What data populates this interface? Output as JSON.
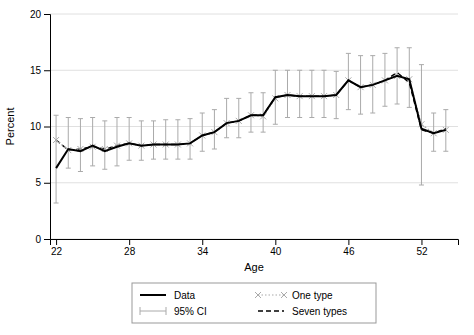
{
  "chart_data": {
    "type": "line",
    "xlabel": "Age",
    "ylabel": "Percent",
    "x": [
      22,
      23,
      24,
      25,
      26,
      27,
      28,
      29,
      30,
      31,
      32,
      33,
      34,
      35,
      36,
      37,
      38,
      39,
      40,
      41,
      42,
      43,
      44,
      45,
      46,
      47,
      48,
      49,
      50,
      51,
      52,
      53,
      54
    ],
    "xlim": [
      21.5,
      55
    ],
    "xticks": [
      22,
      28,
      34,
      40,
      46,
      52
    ],
    "ylim": [
      0,
      20
    ],
    "yticks": [
      0,
      5,
      10,
      15,
      20
    ],
    "grid": true,
    "legend": "bottom",
    "series": [
      {
        "name": "Data",
        "color": "#000000",
        "line_style": "solid",
        "values": [
          6.3,
          8.0,
          7.8,
          8.3,
          7.8,
          8.2,
          8.5,
          8.3,
          8.4,
          8.4,
          8.4,
          8.5,
          9.2,
          9.5,
          10.3,
          10.5,
          11.0,
          11.0,
          12.6,
          12.8,
          12.7,
          12.7,
          12.7,
          12.8,
          14.1,
          13.5,
          13.7,
          14.1,
          14.5,
          14.2,
          9.8,
          9.4,
          9.7
        ]
      },
      {
        "name": "95% CI",
        "type": "errorbar",
        "color": "#aaaaaa",
        "lower": [
          3.2,
          6.3,
          6.0,
          6.5,
          6.2,
          6.5,
          7.0,
          7.0,
          7.1,
          7.1,
          7.1,
          7.1,
          7.8,
          8.0,
          9.0,
          9.0,
          9.5,
          9.5,
          10.2,
          10.8,
          10.8,
          10.8,
          10.8,
          10.7,
          11.5,
          11.1,
          11.2,
          11.8,
          12.0,
          11.7,
          4.8,
          7.8,
          7.8
        ],
        "upper": [
          11.0,
          10.8,
          10.7,
          10.8,
          10.5,
          10.8,
          10.8,
          10.5,
          10.5,
          10.6,
          10.6,
          10.7,
          11.2,
          11.5,
          12.5,
          12.5,
          13.0,
          13.0,
          15.0,
          15.0,
          15.0,
          15.0,
          15.0,
          14.9,
          16.5,
          16.3,
          16.3,
          16.5,
          17.0,
          17.0,
          15.5,
          11.2,
          11.5
        ]
      },
      {
        "name": "One type",
        "color": "#aaaaaa",
        "line_style": "dotted",
        "marker": "x",
        "values": [
          8.8,
          7.9,
          8.0,
          8.2,
          8.0,
          8.3,
          8.5,
          8.3,
          8.4,
          8.4,
          8.4,
          8.5,
          9.2,
          9.5,
          10.3,
          10.5,
          11.0,
          10.9,
          12.5,
          12.8,
          12.7,
          12.7,
          12.7,
          12.8,
          14.1,
          13.5,
          13.7,
          14.1,
          14.5,
          14.2,
          10.2,
          9.4,
          9.7
        ]
      },
      {
        "name": "Seven types",
        "color": "#000000",
        "line_style": "dashed",
        "values": [
          8.8,
          7.9,
          8.0,
          8.2,
          8.0,
          8.3,
          8.5,
          8.3,
          8.4,
          8.4,
          8.4,
          8.5,
          9.2,
          9.5,
          10.3,
          10.5,
          11.0,
          11.0,
          12.6,
          12.8,
          12.7,
          12.7,
          12.7,
          12.8,
          14.1,
          13.5,
          13.7,
          14.1,
          14.8,
          13.9,
          9.7,
          9.4,
          9.8
        ]
      }
    ]
  }
}
